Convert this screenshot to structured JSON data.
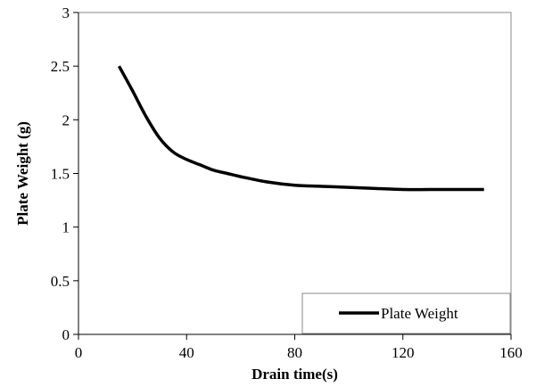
{
  "chart_data": {
    "type": "line",
    "title": "",
    "xlabel": "Drain time(s)",
    "ylabel": "Plate Weight (g)",
    "xlim": [
      0,
      160
    ],
    "ylim": [
      0,
      3
    ],
    "xticks": [
      0,
      40,
      80,
      120,
      160
    ],
    "yticks": [
      0,
      0.5,
      1,
      1.5,
      2,
      2.5,
      3
    ],
    "ytick_labels": [
      "0",
      "0.5",
      "1",
      "1.5",
      "2",
      "2.5",
      "3"
    ],
    "grid": false,
    "legend_position": "bottom-right",
    "series": [
      {
        "name": "Plate Weight",
        "color": "#000000",
        "x": [
          15,
          20,
          25,
          30,
          35,
          40,
          45,
          50,
          55,
          60,
          70,
          80,
          90,
          100,
          110,
          120,
          130,
          140,
          150
        ],
        "y": [
          2.5,
          2.27,
          2.03,
          1.83,
          1.7,
          1.63,
          1.58,
          1.53,
          1.5,
          1.47,
          1.42,
          1.39,
          1.38,
          1.37,
          1.36,
          1.35,
          1.35,
          1.35,
          1.35
        ]
      }
    ]
  }
}
